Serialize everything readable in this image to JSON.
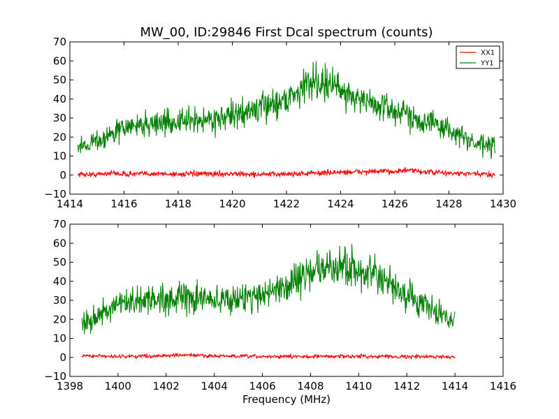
{
  "figure": {
    "title": "MW_00, ID:29846 First Dcal spectrum (counts)"
  },
  "chart_data": [
    {
      "type": "line",
      "title": "MW_00, ID:29846 First Dcal spectrum (counts)",
      "xlabel": "",
      "ylabel": "",
      "xlim": [
        1414,
        1430
      ],
      "ylim": [
        -10,
        70
      ],
      "xticks": [
        1414,
        1416,
        1418,
        1420,
        1422,
        1424,
        1426,
        1428,
        1430
      ],
      "yticks": [
        -10,
        0,
        10,
        20,
        30,
        40,
        50,
        60,
        70
      ],
      "xtick_labels": [
        "1414",
        "1416",
        "1418",
        "1420",
        "1422",
        "1424",
        "1426",
        "1428",
        "1430"
      ],
      "ytick_labels": [
        "−10",
        "0",
        "10",
        "20",
        "30",
        "40",
        "50",
        "60",
        "70"
      ],
      "legend": {
        "placement": "top-right",
        "entries": [
          "XX1",
          "YY1"
        ]
      },
      "grid": false,
      "series": [
        {
          "name": "XX1",
          "color": "#ff0000",
          "x": [
            1414.3,
            1415.0,
            1415.5,
            1416.0,
            1417.0,
            1418.0,
            1419.0,
            1420.0,
            1421.0,
            1422.0,
            1423.0,
            1424.0,
            1425.0,
            1426.0,
            1426.5,
            1427.0,
            1428.0,
            1429.0,
            1429.7
          ],
          "values": [
            0.5,
            0.3,
            1.2,
            0.5,
            0.8,
            0.5,
            0.6,
            0.7,
            0.3,
            0.6,
            1.0,
            1.5,
            1.8,
            2.0,
            2.5,
            1.8,
            1.0,
            0.5,
            0.3
          ]
        },
        {
          "name": "YY1",
          "color": "#008000",
          "x": [
            1414.3,
            1415.0,
            1415.5,
            1416.0,
            1417.0,
            1418.0,
            1419.0,
            1420.0,
            1421.0,
            1422.0,
            1422.5,
            1423.0,
            1423.5,
            1424.0,
            1425.0,
            1426.0,
            1427.0,
            1428.0,
            1428.5,
            1429.0,
            1429.7
          ],
          "values": [
            15,
            18,
            21,
            25,
            27,
            28,
            29,
            31,
            35,
            40,
            45,
            50,
            48,
            45,
            38,
            34,
            29,
            24,
            20,
            16,
            15
          ]
        }
      ]
    },
    {
      "type": "line",
      "title": "",
      "xlabel": "Frequency (MHz)",
      "ylabel": "",
      "xlim": [
        1398,
        1416
      ],
      "ylim": [
        -10,
        70
      ],
      "xticks": [
        1398,
        1400,
        1402,
        1404,
        1406,
        1408,
        1410,
        1412,
        1414,
        1416
      ],
      "yticks": [
        -10,
        0,
        10,
        20,
        30,
        40,
        50,
        60,
        70
      ],
      "xtick_labels": [
        "1398",
        "1400",
        "1402",
        "1404",
        "1406",
        "1408",
        "1410",
        "1412",
        "1414",
        "1416"
      ],
      "ytick_labels": [
        "−10",
        "0",
        "10",
        "20",
        "30",
        "40",
        "50",
        "60",
        "70"
      ],
      "grid": false,
      "series": [
        {
          "color": "#ff0000",
          "x": [
            1398.5,
            1400.0,
            1402.0,
            1403.0,
            1404.0,
            1406.0,
            1408.0,
            1410.0,
            1412.0,
            1414.0
          ],
          "values": [
            0.8,
            0.5,
            0.9,
            1.2,
            0.7,
            0.4,
            0.5,
            0.6,
            0.4,
            0.3
          ]
        },
        {
          "color": "#008000",
          "x": [
            1398.5,
            1399.0,
            1399.5,
            1400.0,
            1401.0,
            1402.0,
            1403.0,
            1404.0,
            1405.0,
            1406.0,
            1407.0,
            1408.0,
            1409.0,
            1409.5,
            1410.0,
            1411.0,
            1412.0,
            1412.5,
            1413.0,
            1413.5,
            1414.0
          ],
          "values": [
            18,
            21,
            24,
            27,
            30,
            31,
            31,
            30,
            31,
            33,
            38,
            45,
            47,
            48,
            46,
            40,
            32,
            29,
            25,
            22,
            19
          ]
        }
      ]
    }
  ]
}
